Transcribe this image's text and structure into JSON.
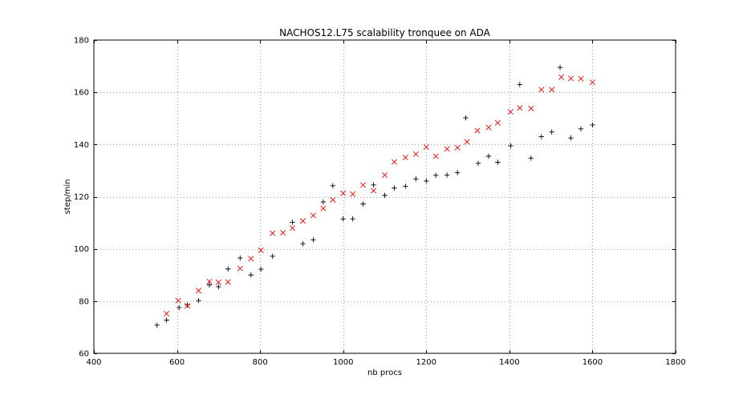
{
  "chart_data": {
    "type": "scatter",
    "title": "NACHOS12.L75 scalability tronquee on ADA",
    "xlabel": "nb procs",
    "ylabel": "step/min",
    "xlim": [
      400,
      1800
    ],
    "ylim": [
      60,
      180
    ],
    "x_ticks": [
      "400",
      "600",
      "800",
      "1000",
      "1200",
      "1400",
      "1600",
      "1800"
    ],
    "y_ticks": [
      "60",
      "80",
      "100",
      "120",
      "140",
      "160",
      "180"
    ],
    "grid": true,
    "legend": "none",
    "series": [
      {
        "marker": "plus",
        "color": "#000000",
        "points": [
          [
            552,
            70.8
          ],
          [
            575,
            72.7
          ],
          [
            605,
            77.5
          ],
          [
            625,
            78.5
          ],
          [
            652,
            80.2
          ],
          [
            678,
            86.2
          ],
          [
            700,
            85.5
          ],
          [
            723,
            92.3
          ],
          [
            752,
            96.5
          ],
          [
            778,
            90.0
          ],
          [
            802,
            92.2
          ],
          [
            830,
            97.2
          ],
          [
            878,
            110.2
          ],
          [
            903,
            102.0
          ],
          [
            928,
            103.5
          ],
          [
            952,
            118.0
          ],
          [
            975,
            124.2
          ],
          [
            1000,
            111.5
          ],
          [
            1023,
            111.5
          ],
          [
            1048,
            117.2
          ],
          [
            1073,
            124.5
          ],
          [
            1100,
            120.5
          ],
          [
            1123,
            123.3
          ],
          [
            1150,
            124.0
          ],
          [
            1175,
            126.8
          ],
          [
            1200,
            126.0
          ],
          [
            1223,
            128.2
          ],
          [
            1250,
            128.3
          ],
          [
            1275,
            129.2
          ],
          [
            1295,
            150.2
          ],
          [
            1325,
            132.8
          ],
          [
            1350,
            135.5
          ],
          [
            1372,
            133.2
          ],
          [
            1403,
            139.5
          ],
          [
            1425,
            163.0
          ],
          [
            1452,
            134.8
          ],
          [
            1477,
            143.0
          ],
          [
            1502,
            144.8
          ],
          [
            1522,
            169.5
          ],
          [
            1548,
            142.5
          ],
          [
            1572,
            146.0
          ],
          [
            1600,
            147.5
          ]
        ]
      },
      {
        "marker": "x",
        "color": "#ff0000",
        "points": [
          [
            575,
            75.2
          ],
          [
            603,
            80.2
          ],
          [
            625,
            78.2
          ],
          [
            652,
            84.0
          ],
          [
            678,
            87.5
          ],
          [
            700,
            87.2
          ],
          [
            723,
            87.3
          ],
          [
            752,
            92.5
          ],
          [
            778,
            96.3
          ],
          [
            802,
            99.5
          ],
          [
            830,
            106.0
          ],
          [
            855,
            106.2
          ],
          [
            878,
            108.0
          ],
          [
            903,
            110.7
          ],
          [
            928,
            112.8
          ],
          [
            952,
            115.5
          ],
          [
            975,
            118.8
          ],
          [
            1000,
            121.3
          ],
          [
            1023,
            121.0
          ],
          [
            1048,
            124.5
          ],
          [
            1073,
            122.3
          ],
          [
            1100,
            128.3
          ],
          [
            1123,
            133.3
          ],
          [
            1150,
            135.0
          ],
          [
            1175,
            136.3
          ],
          [
            1200,
            139.0
          ],
          [
            1223,
            135.5
          ],
          [
            1250,
            138.3
          ],
          [
            1275,
            138.8
          ],
          [
            1298,
            141.0
          ],
          [
            1323,
            145.3
          ],
          [
            1350,
            146.5
          ],
          [
            1372,
            148.3
          ],
          [
            1403,
            152.5
          ],
          [
            1425,
            154.0
          ],
          [
            1452,
            153.8
          ],
          [
            1477,
            161.0
          ],
          [
            1502,
            161.0
          ],
          [
            1525,
            165.8
          ],
          [
            1548,
            165.3
          ],
          [
            1572,
            165.2
          ],
          [
            1600,
            163.8
          ]
        ]
      }
    ]
  }
}
